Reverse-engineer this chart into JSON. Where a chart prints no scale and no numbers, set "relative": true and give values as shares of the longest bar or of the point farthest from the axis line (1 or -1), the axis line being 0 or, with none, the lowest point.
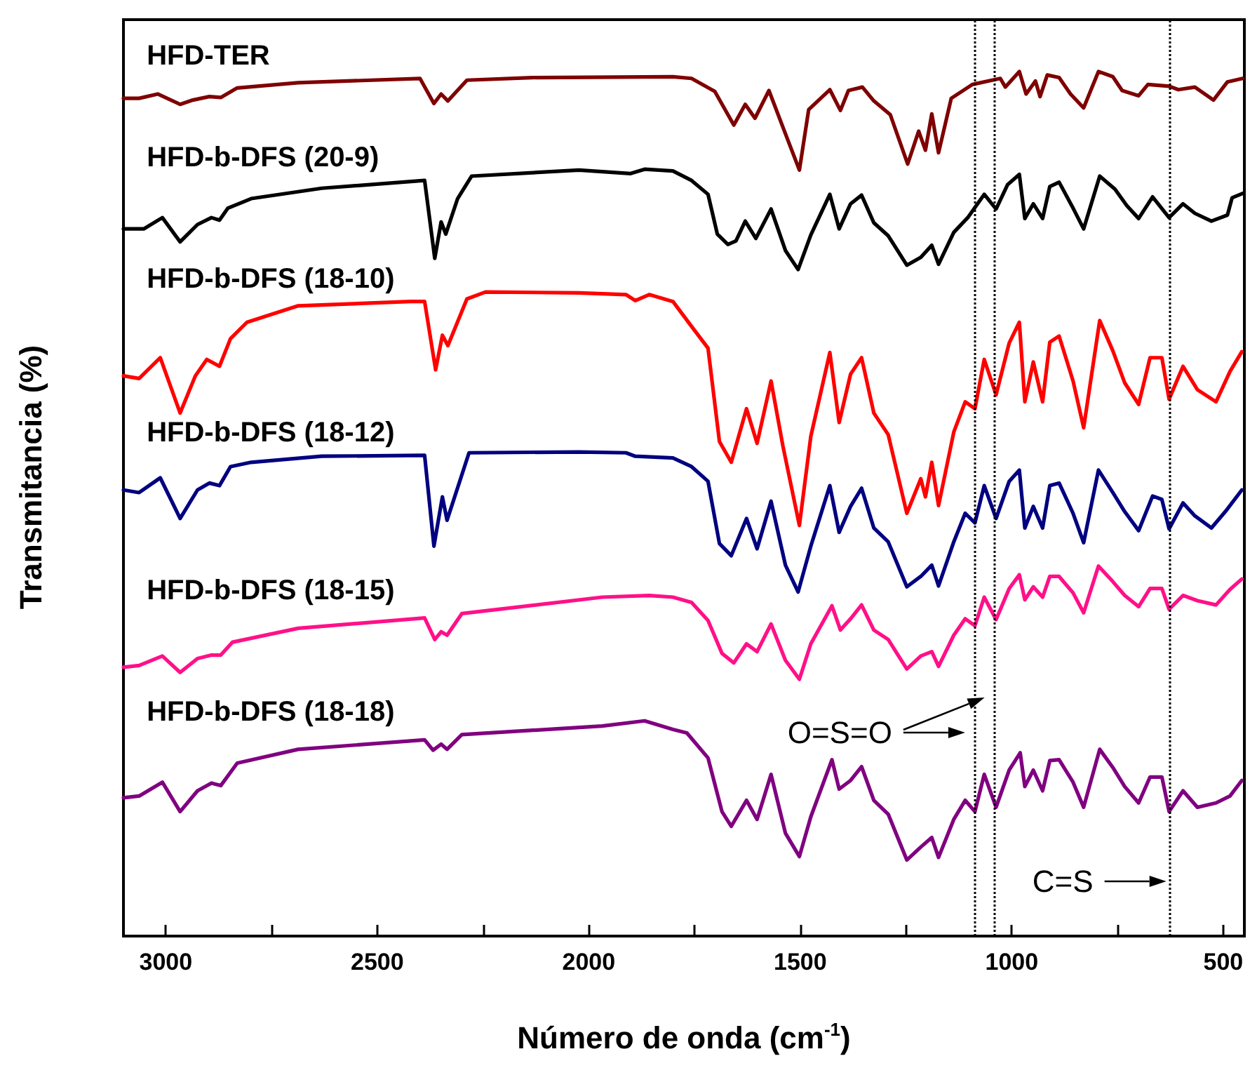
{
  "chart_data": {
    "type": "line",
    "relative": true,
    "xlabel": "Número de onda (cm$^{-1}$)",
    "ylabel": "Transmitancia (%)",
    "xlim": [
      3100,
      450
    ],
    "xticks": [
      3000,
      {
        "value": 2750,
        "label": null
      },
      2500,
      {
        "value": 2250,
        "label": null
      },
      2000,
      {
        "value": 1750,
        "label": null
      },
      1500,
      {
        "value": 1250,
        "label": null
      },
      1000,
      {
        "value": 750,
        "label": null
      },
      500
    ],
    "grid": false,
    "legend": false,
    "marker": "none",
    "line_style": "solid",
    "series": [
      {
        "name": "HFD-TER",
        "color": "#7f0000",
        "x": [
          3100,
          3063,
          3019,
          2966,
          2936,
          2897,
          2870,
          2831,
          2687,
          2399,
          2366,
          2349,
          2333,
          2288,
          2134,
          1801,
          1757,
          1702,
          1657,
          1630,
          1607,
          1574,
          1535,
          1502,
          1480,
          1430,
          1405,
          1386,
          1353,
          1326,
          1287,
          1246,
          1220,
          1204,
          1189,
          1173,
          1143,
          1093,
          1027,
          1015,
          982,
          966,
          944,
          933,
          916,
          888,
          861,
          830,
          795,
          761,
          739,
          700,
          678,
          628,
          606,
          567,
          523,
          490,
          454
        ],
        "values": [
          0.969,
          0.969,
          0.974,
          0.962,
          0.967,
          0.971,
          0.97,
          0.981,
          0.987,
          0.992,
          0.963,
          0.974,
          0.966,
          0.99,
          0.993,
          0.994,
          0.992,
          0.977,
          0.938,
          0.962,
          0.946,
          0.978,
          0.928,
          0.886,
          0.956,
          0.979,
          0.955,
          0.978,
          0.982,
          0.966,
          0.95,
          0.893,
          0.931,
          0.909,
          0.951,
          0.906,
          0.969,
          0.985,
          0.992,
          0.982,
          1,
          0.974,
          0.989,
          0.971,
          0.996,
          0.993,
          0.974,
          0.958,
          1,
          0.994,
          0.978,
          0.972,
          0.985,
          0.983,
          0.979,
          0.982,
          0.967,
          0.988,
          0.992
        ]
      },
      {
        "name": "HFD-b-DFS (20-9)",
        "color": "#000000",
        "x": [
          3100,
          3052,
          3008,
          2966,
          2925,
          2892,
          2873,
          2853,
          2798,
          2631,
          2388,
          2364,
          2349,
          2338,
          2310,
          2277,
          2023,
          1901,
          1868,
          1801,
          1757,
          1718,
          1696,
          1671,
          1652,
          1630,
          1605,
          1569,
          1535,
          1505,
          1475,
          1430,
          1408,
          1381,
          1355,
          1326,
          1292,
          1248,
          1215,
          1189,
          1173,
          1137,
          1104,
          1065,
          1037,
          1010,
          982,
          969,
          949,
          927,
          910,
          888,
          855,
          830,
          792,
          756,
          728,
          700,
          667,
          628,
          595,
          567,
          528,
          490,
          479,
          454
        ],
        "values": [
          0.818,
          0.818,
          0.831,
          0.803,
          0.823,
          0.831,
          0.828,
          0.842,
          0.853,
          0.865,
          0.874,
          0.784,
          0.826,
          0.812,
          0.853,
          0.879,
          0.886,
          0.882,
          0.887,
          0.885,
          0.874,
          0.858,
          0.812,
          0.8,
          0.804,
          0.827,
          0.807,
          0.841,
          0.793,
          0.771,
          0.811,
          0.858,
          0.818,
          0.847,
          0.857,
          0.825,
          0.81,
          0.776,
          0.785,
          0.799,
          0.777,
          0.814,
          0.831,
          0.858,
          0.841,
          0.869,
          0.881,
          0.83,
          0.847,
          0.83,
          0.867,
          0.872,
          0.842,
          0.818,
          0.879,
          0.864,
          0.845,
          0.83,
          0.855,
          0.831,
          0.847,
          0.836,
          0.827,
          0.834,
          0.854,
          0.859
        ]
      },
      {
        "name": "HFD-b-DFS (18-10)",
        "color": "#ff0000",
        "x": [
          3100,
          3063,
          3013,
          2966,
          2930,
          2903,
          2873,
          2847,
          2808,
          2687,
          2421,
          2388,
          2362,
          2346,
          2333,
          2288,
          2244,
          2023,
          1912,
          1890,
          1857,
          1801,
          1752,
          1718,
          1691,
          1663,
          1627,
          1602,
          1569,
          1541,
          1502,
          1475,
          1430,
          1408,
          1381,
          1355,
          1326,
          1292,
          1248,
          1215,
          1204,
          1189,
          1173,
          1137,
          1110,
          1087,
          1065,
          1037,
          1006,
          982,
          969,
          949,
          927,
          910,
          888,
          855,
          830,
          792,
          761,
          733,
          700,
          673,
          645,
          628,
          595,
          561,
          517,
          484,
          456
        ],
        "values": [
          0.648,
          0.645,
          0.669,
          0.605,
          0.648,
          0.667,
          0.659,
          0.691,
          0.71,
          0.729,
          0.734,
          0.734,
          0.655,
          0.695,
          0.683,
          0.737,
          0.745,
          0.744,
          0.742,
          0.735,
          0.742,
          0.734,
          0.702,
          0.68,
          0.572,
          0.548,
          0.61,
          0.57,
          0.642,
          0.567,
          0.475,
          0.578,
          0.675,
          0.594,
          0.65,
          0.669,
          0.605,
          0.58,
          0.489,
          0.529,
          0.508,
          0.548,
          0.498,
          0.583,
          0.618,
          0.61,
          0.667,
          0.626,
          0.686,
          0.71,
          0.618,
          0.664,
          0.618,
          0.687,
          0.694,
          0.642,
          0.588,
          0.712,
          0.677,
          0.64,
          0.615,
          0.669,
          0.669,
          0.621,
          0.659,
          0.632,
          0.618,
          0.653,
          0.676
        ]
      },
      {
        "name": "HFD-b-DFS (18-12)",
        "color": "#000080",
        "x": [
          3100,
          3063,
          3013,
          2966,
          2925,
          2897,
          2873,
          2847,
          2798,
          2631,
          2388,
          2366,
          2346,
          2335,
          2283,
          2023,
          1912,
          1890,
          1801,
          1757,
          1718,
          1691,
          1663,
          1627,
          1602,
          1569,
          1535,
          1505,
          1475,
          1430,
          1408,
          1381,
          1355,
          1326,
          1292,
          1248,
          1215,
          1189,
          1173,
          1137,
          1110,
          1087,
          1065,
          1037,
          1006,
          982,
          969,
          949,
          927,
          910,
          888,
          855,
          830,
          795,
          761,
          733,
          700,
          667,
          645,
          628,
          595,
          567,
          528,
          495,
          456
        ],
        "values": [
          0.516,
          0.513,
          0.53,
          0.483,
          0.516,
          0.524,
          0.521,
          0.543,
          0.548,
          0.555,
          0.556,
          0.451,
          0.508,
          0.481,
          0.559,
          0.56,
          0.559,
          0.555,
          0.553,
          0.543,
          0.526,
          0.454,
          0.44,
          0.483,
          0.448,
          0.503,
          0.429,
          0.398,
          0.451,
          0.521,
          0.467,
          0.497,
          0.518,
          0.472,
          0.456,
          0.404,
          0.416,
          0.429,
          0.405,
          0.456,
          0.489,
          0.478,
          0.521,
          0.483,
          0.526,
          0.539,
          0.472,
          0.497,
          0.472,
          0.521,
          0.524,
          0.489,
          0.455,
          0.539,
          0.513,
          0.491,
          0.469,
          0.509,
          0.505,
          0.471,
          0.501,
          0.486,
          0.472,
          0.491,
          0.516
        ]
      },
      {
        "name": "HFD-b-DFS (18-15)",
        "color": "#ff1088",
        "x": [
          3100,
          3063,
          3008,
          2966,
          2925,
          2892,
          2870,
          2842,
          2687,
          2388,
          2364,
          2349,
          2335,
          2300,
          1968,
          1857,
          1801,
          1757,
          1718,
          1685,
          1657,
          1627,
          1602,
          1569,
          1535,
          1502,
          1475,
          1425,
          1405,
          1381,
          1355,
          1326,
          1292,
          1248,
          1215,
          1189,
          1173,
          1137,
          1110,
          1087,
          1065,
          1037,
          1006,
          982,
          969,
          949,
          927,
          910,
          888,
          855,
          830,
          795,
          761,
          733,
          700,
          673,
          645,
          628,
          595,
          561,
          517,
          484,
          456
        ],
        "values": [
          0.311,
          0.313,
          0.324,
          0.305,
          0.321,
          0.325,
          0.325,
          0.34,
          0.356,
          0.368,
          0.343,
          0.352,
          0.348,
          0.373,
          0.392,
          0.394,
          0.392,
          0.386,
          0.365,
          0.327,
          0.316,
          0.338,
          0.329,
          0.361,
          0.319,
          0.297,
          0.338,
          0.382,
          0.354,
          0.367,
          0.383,
          0.354,
          0.343,
          0.309,
          0.324,
          0.329,
          0.312,
          0.348,
          0.367,
          0.359,
          0.392,
          0.366,
          0.402,
          0.418,
          0.389,
          0.404,
          0.392,
          0.416,
          0.416,
          0.397,
          0.374,
          0.428,
          0.41,
          0.394,
          0.381,
          0.402,
          0.402,
          0.378,
          0.394,
          0.388,
          0.383,
          0.401,
          0.413
        ]
      },
      {
        "name": "HFD-b-DFS (18-18)",
        "color": "#800080",
        "x": [
          3100,
          3063,
          3008,
          2966,
          2925,
          2892,
          2870,
          2831,
          2687,
          2388,
          2368,
          2349,
          2335,
          2300,
          1968,
          1868,
          1801,
          1768,
          1718,
          1685,
          1663,
          1627,
          1602,
          1569,
          1535,
          1502,
          1475,
          1425,
          1408,
          1381,
          1355,
          1326,
          1292,
          1248,
          1215,
          1189,
          1173,
          1137,
          1110,
          1087,
          1065,
          1037,
          1006,
          980,
          969,
          949,
          927,
          910,
          888,
          855,
          830,
          792,
          761,
          733,
          700,
          673,
          645,
          628,
          595,
          561,
          517,
          484,
          456
        ],
        "values": [
          0.16,
          0.162,
          0.178,
          0.144,
          0.168,
          0.177,
          0.174,
          0.2,
          0.216,
          0.227,
          0.215,
          0.222,
          0.216,
          0.233,
          0.243,
          0.249,
          0.239,
          0.235,
          0.206,
          0.144,
          0.127,
          0.157,
          0.135,
          0.187,
          0.119,
          0.092,
          0.138,
          0.204,
          0.17,
          0.18,
          0.196,
          0.157,
          0.141,
          0.088,
          0.103,
          0.114,
          0.091,
          0.135,
          0.157,
          0.144,
          0.187,
          0.149,
          0.192,
          0.212,
          0.173,
          0.192,
          0.168,
          0.203,
          0.204,
          0.178,
          0.149,
          0.216,
          0.195,
          0.173,
          0.154,
          0.184,
          0.184,
          0.144,
          0.168,
          0.149,
          0.154,
          0.162,
          0.18
        ]
      }
    ],
    "ref_lines": [
      {
        "axis": "x",
        "value": 1087,
        "color": "#000000",
        "line_style": "dotted"
      },
      {
        "axis": "x",
        "value": 1041,
        "color": "#000000",
        "line_style": "dotted"
      },
      {
        "axis": "x",
        "value": 628,
        "color": "#000000",
        "line_style": "dotted"
      }
    ],
    "annotations": [
      "O=S=O",
      "C=S"
    ]
  }
}
